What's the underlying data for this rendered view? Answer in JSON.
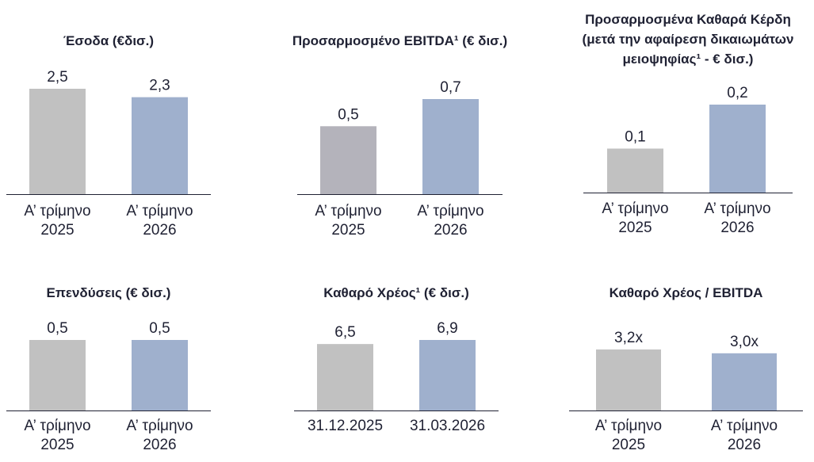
{
  "colors": {
    "gray": "#c1c1c1",
    "gray_dark": "#b4b3bb",
    "blue": "#9fb0cd",
    "text": "#1f2133"
  },
  "chart_data": [
    {
      "type": "bar",
      "title_lines": [
        "Έσοδα (€δισ.)"
      ],
      "categories": [
        [
          "Α’ τρίμηνο",
          "2025"
        ],
        [
          "Α’ τρίμηνο",
          "2026"
        ]
      ],
      "values": [
        2.5,
        2.3
      ],
      "value_labels": [
        "2,5",
        "2,3"
      ],
      "colors": [
        "gray",
        "blue"
      ],
      "ylim": [
        0,
        2.5
      ]
    },
    {
      "type": "bar",
      "title_lines": [
        "Προσαρμοσμένο EBITDA¹ (€ δισ.)"
      ],
      "categories": [
        [
          "Α’ τρίμηνο",
          "2025"
        ],
        [
          "Α’ τρίμηνο",
          "2026"
        ]
      ],
      "values": [
        0.5,
        0.7
      ],
      "value_labels": [
        "0,5",
        "0,7"
      ],
      "colors": [
        "gray_dark",
        "blue"
      ],
      "ylim": [
        0,
        0.7
      ]
    },
    {
      "type": "bar",
      "title_lines": [
        "Προσαρμοσμένα Καθαρά Κέρδη",
        "(μετά την αφαίρεση δικαιωμάτων",
        "μειοψηφίας¹ - € δισ.)"
      ],
      "categories": [
        [
          "Α’ τρίμηνο",
          "2025"
        ],
        [
          "Α’ τρίμηνο",
          "2026"
        ]
      ],
      "values": [
        0.1,
        0.2
      ],
      "value_labels": [
        "0,1",
        "0,2"
      ],
      "colors": [
        "gray",
        "blue"
      ],
      "ylim": [
        0,
        0.2
      ]
    },
    {
      "type": "bar",
      "title_lines": [
        "Επενδύσεις (€ δισ.)"
      ],
      "categories": [
        [
          "Α’ τρίμηνο",
          "2025"
        ],
        [
          "Α’ τρίμηνο",
          "2026"
        ]
      ],
      "values": [
        0.5,
        0.5
      ],
      "value_labels": [
        "0,5",
        "0,5"
      ],
      "colors": [
        "gray",
        "blue"
      ],
      "ylim": [
        0,
        0.5
      ]
    },
    {
      "type": "bar",
      "title_lines": [
        "Καθαρό Χρέος¹ (€ δισ.)"
      ],
      "categories": [
        [
          "31.12.2025"
        ],
        [
          "31.03.2026"
        ]
      ],
      "values": [
        6.5,
        6.9
      ],
      "value_labels": [
        "6,5",
        "6,9"
      ],
      "colors": [
        "gray",
        "blue"
      ],
      "ylim": [
        0,
        6.9
      ]
    },
    {
      "type": "bar",
      "title_lines": [
        "Καθαρό Χρέος / EBITDA"
      ],
      "categories": [
        [
          "Α’ τρίμηνο",
          "2025"
        ],
        [
          "Α’ τρίμηνο",
          "2026"
        ]
      ],
      "values": [
        3.2,
        3.0
      ],
      "value_labels": [
        "3,2x",
        "3,0x"
      ],
      "colors": [
        "gray",
        "blue"
      ],
      "ylim": [
        0,
        3.2
      ]
    }
  ]
}
